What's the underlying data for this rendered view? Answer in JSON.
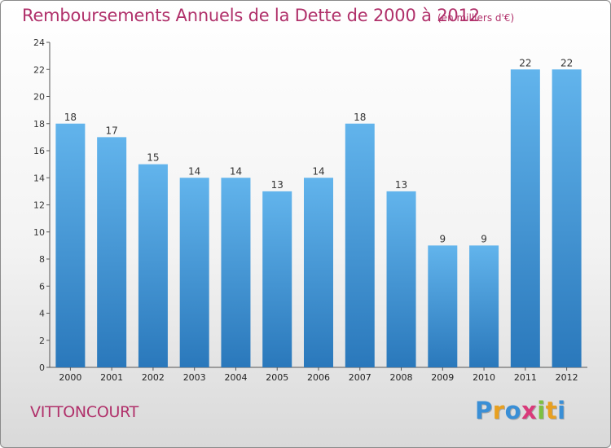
{
  "header": {
    "title": "Remboursements Annuels de la Dette de 2000 à 2012",
    "unit": "(en milliers d'€)"
  },
  "footer": {
    "commune": "VITTONCOURT",
    "logo_letters": [
      "P",
      "r",
      "o",
      "x",
      "i",
      "t",
      "i"
    ],
    "logo_colors": [
      "#3a8fd6",
      "#e8a020",
      "#3a8fd6",
      "#d93a7a",
      "#7cc040",
      "#e8a020",
      "#3a8fd6"
    ]
  },
  "colors": {
    "bar_light": "#62b4ec",
    "bar_dark": "#2a78bb",
    "text_accent": "#b0306a"
  },
  "chart_data": {
    "type": "bar",
    "title": "Remboursements Annuels de la Dette de 2000 à 2012",
    "subtitle": "(en milliers d'€)",
    "xlabel": "",
    "ylabel": "",
    "categories": [
      "2000",
      "2001",
      "2002",
      "2003",
      "2004",
      "2005",
      "2006",
      "2007",
      "2008",
      "2009",
      "2010",
      "2011",
      "2012"
    ],
    "values": [
      18,
      17,
      15,
      14,
      14,
      13,
      14,
      18,
      13,
      9,
      9,
      22,
      22
    ],
    "data_labels": [
      "18",
      "17",
      "15",
      "14",
      "14",
      "13",
      "14",
      "18",
      "13",
      "9",
      "9",
      "22",
      "22"
    ],
    "ylim": [
      0,
      24
    ],
    "yticks": [
      0,
      2,
      4,
      6,
      8,
      10,
      12,
      14,
      16,
      18,
      20,
      22,
      24
    ],
    "ytick_labels": [
      "0",
      "2",
      "4",
      "6",
      "8",
      "10",
      "12",
      "14",
      "16",
      "18",
      "20",
      "22",
      "24"
    ],
    "grid": false,
    "legend": "none"
  }
}
